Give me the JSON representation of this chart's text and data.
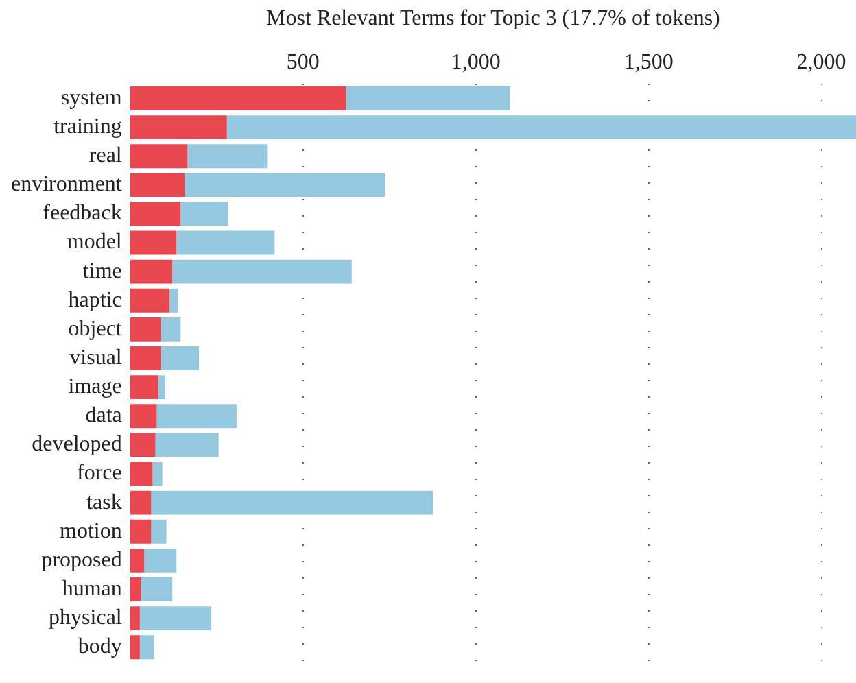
{
  "chart_data": {
    "type": "bar",
    "orientation": "horizontal",
    "stacked": true,
    "title": "Most Relevant Terms for Topic 3 (17.7% of tokens)",
    "categories": [
      "system",
      "training",
      "real",
      "environment",
      "feedback",
      "model",
      "time",
      "haptic",
      "object",
      "visual",
      "image",
      "data",
      "developed",
      "force",
      "task",
      "motion",
      "proposed",
      "human",
      "physical",
      "body"
    ],
    "series": [
      {
        "color": "#e8474f",
        "values": [
          625,
          280,
          166,
          158,
          146,
          134,
          122,
          114,
          89,
          89,
          81,
          77,
          73,
          65,
          61,
          61,
          41,
          32,
          28,
          28
        ]
      },
      {
        "color": "#96c9e0",
        "values": [
          474,
          1820,
          232,
          580,
          138,
          284,
          519,
          24,
          57,
          110,
          20,
          231,
          183,
          28,
          815,
          44,
          93,
          90,
          207,
          41
        ]
      }
    ],
    "xlim": [
      0,
      2100
    ],
    "xticks": [
      {
        "value": 500,
        "label": "500"
      },
      {
        "value": 1000,
        "label": "1,000"
      },
      {
        "value": 1500,
        "label": "1,500"
      },
      {
        "value": 2000,
        "label": "2,000"
      }
    ],
    "grid": "x",
    "legend": false
  }
}
